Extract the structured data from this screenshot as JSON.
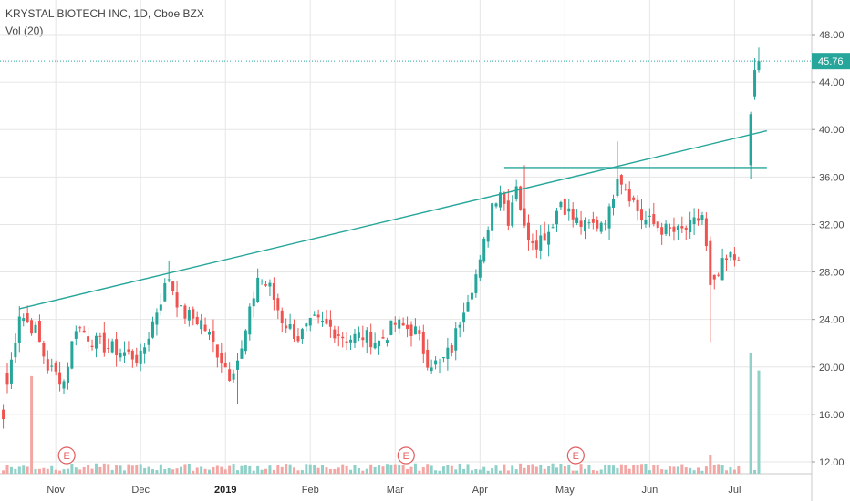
{
  "header": {
    "title": "KRYSTAL BIOTECH INC, 1D, Cboe BZX",
    "volume_label": "Vol (20)"
  },
  "colors": {
    "up": "#26a69a",
    "down": "#ef5350",
    "vol_up": "#8fd1c8",
    "vol_down": "#f3a7a5",
    "trendline": "#26a69a",
    "grid": "#e6e6e6",
    "axis_text": "#4a4a4a",
    "current_price_line": "#26a69a"
  },
  "chart_data": {
    "type": "candlestick",
    "y_axis": {
      "ticks": [
        "48.00",
        "44.00",
        "40.00",
        "36.00",
        "32.00",
        "28.00",
        "24.00",
        "20.00",
        "16.00",
        "12.00"
      ],
      "ylim": [
        11.2,
        48.6
      ]
    },
    "x_axis": {
      "ticks": [
        "Nov",
        "Dec",
        "2019",
        "Feb",
        "Mar",
        "Apr",
        "May",
        "Jun",
        "Jul"
      ],
      "bold_ticks": [
        "2019"
      ]
    },
    "current_price": "45.76",
    "earnings_markers": [
      {
        "label": "E",
        "month": "Nov"
      },
      {
        "label": "E",
        "month": "Mar"
      },
      {
        "label": "E",
        "month": "May"
      }
    ],
    "trendlines": [
      {
        "name": "ascending-resistance",
        "from": {
          "bar": 3,
          "price": 24.9
        },
        "to": {
          "bar": 188,
          "price": 39.9
        }
      },
      {
        "name": "horizontal-resistance",
        "from": {
          "bar": 123,
          "price": 36.8
        },
        "to": {
          "bar": 188,
          "price": 36.8
        }
      }
    ],
    "bars_per_month": 21,
    "first_bar_month": "Oct",
    "price_anchors": [
      [
        0,
        18.5
      ],
      [
        3,
        24.6
      ],
      [
        7,
        23.0
      ],
      [
        10,
        20.0
      ],
      [
        14,
        18.8
      ],
      [
        17,
        23.5
      ],
      [
        22,
        22.0
      ],
      [
        28,
        21.3
      ],
      [
        33,
        20.7
      ],
      [
        37,
        24.8
      ],
      [
        40,
        27.6
      ],
      [
        43,
        24.6
      ],
      [
        48,
        23.8
      ],
      [
        52,
        21.3
      ],
      [
        55,
        19.4
      ],
      [
        58,
        21.3
      ],
      [
        62,
        27.6
      ],
      [
        65,
        26.6
      ],
      [
        68,
        24.0
      ],
      [
        72,
        22.5
      ],
      [
        76,
        23.8
      ],
      [
        80,
        23.3
      ],
      [
        84,
        22.4
      ],
      [
        88,
        22.6
      ],
      [
        92,
        22.1
      ],
      [
        96,
        23.6
      ],
      [
        101,
        23.0
      ],
      [
        104,
        20.6
      ],
      [
        107,
        20.1
      ],
      [
        110,
        21.6
      ],
      [
        113,
        25.2
      ],
      [
        117,
        28.6
      ],
      [
        120,
        33.8
      ],
      [
        122,
        35.0
      ],
      [
        124,
        32.5
      ],
      [
        126,
        35.6
      ],
      [
        128,
        31.5
      ],
      [
        131,
        30.6
      ],
      [
        134,
        31.5
      ],
      [
        137,
        34.0
      ],
      [
        140,
        32.5
      ],
      [
        143,
        31.8
      ],
      [
        146,
        32.0
      ],
      [
        149,
        33.0
      ],
      [
        151,
        36.4
      ],
      [
        154,
        34.6
      ],
      [
        157,
        32.5
      ],
      [
        160,
        32.0
      ],
      [
        163,
        31.5
      ],
      [
        166,
        31.3
      ],
      [
        169,
        31.7
      ],
      [
        172,
        32.8
      ],
      [
        174,
        27.0
      ],
      [
        175,
        26.8
      ],
      [
        177,
        28.5
      ],
      [
        179,
        29.2
      ],
      [
        181,
        29.0
      ]
    ],
    "gap_bars": [
      {
        "bar": 184,
        "open": 37.0,
        "high": 41.5,
        "low": 35.8,
        "close": 41.3
      },
      {
        "bar": 185,
        "open": 42.8,
        "high": 46.0,
        "low": 42.5,
        "close": 45.0
      },
      {
        "bar": 186,
        "open": 45.0,
        "high": 46.9,
        "low": 44.8,
        "close": 45.76
      }
    ],
    "volume_spikes": [
      {
        "bar": 6,
        "value": 17.0
      },
      {
        "bar": 174,
        "value": 3.2
      },
      {
        "bar": 184,
        "value": 21.0
      },
      {
        "bar": 186,
        "value": 18.0
      }
    ]
  }
}
